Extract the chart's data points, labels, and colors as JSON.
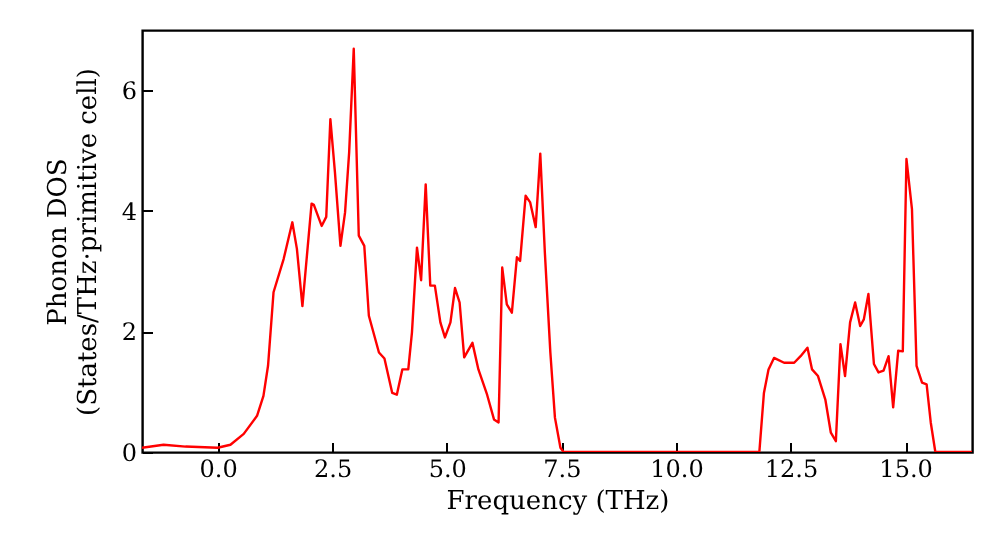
{
  "chart_data": {
    "type": "line",
    "xlabel": "Frequency (THz)",
    "ylabel": "Phonon DOS\n(States/THz·primitive cell)",
    "xlim": [
      -1.65,
      16.46
    ],
    "ylim": [
      0,
      7
    ],
    "xticks": [
      {
        "value": 0,
        "label": "0.0"
      },
      {
        "value": 2.5,
        "label": "2.5"
      },
      {
        "value": 5,
        "label": "5.0"
      },
      {
        "value": 7.5,
        "label": "7.5"
      },
      {
        "value": 10,
        "label": "10.0"
      },
      {
        "value": 12.5,
        "label": "12.5"
      },
      {
        "value": 15,
        "label": "15.0"
      }
    ],
    "yticks": [
      0,
      2,
      4,
      6
    ],
    "grid": false,
    "marker": "none",
    "line_style": "solid",
    "series": [
      {
        "color": "#ff0000",
        "x": [
          -1.65,
          -1.18,
          -0.7,
          0,
          0.28,
          0.57,
          0.86,
          1.0,
          1.1,
          1.22,
          1.44,
          1.63,
          1.73,
          1.85,
          2.05,
          2.1,
          2.27,
          2.37,
          2.46,
          2.56,
          2.68,
          2.78,
          2.87,
          2.97,
          3.08,
          3.2,
          3.3,
          3.52,
          3.64,
          3.81,
          3.91,
          4.03,
          4.16,
          4.24,
          4.35,
          4.44,
          4.54,
          4.64,
          4.74,
          4.86,
          4.96,
          5.08,
          5.18,
          5.28,
          5.38,
          5.56,
          5.69,
          5.88,
          6.03,
          6.13,
          6.21,
          6.31,
          6.42,
          6.53,
          6.6,
          6.72,
          6.82,
          6.94,
          7.04,
          7.14,
          7.26,
          7.36,
          7.48,
          7.55,
          11.82,
          11.92,
          12.02,
          12.14,
          12.36,
          12.58,
          12.72,
          12.87,
          12.97,
          13.1,
          13.26,
          13.38,
          13.49,
          13.59,
          13.69,
          13.8,
          13.91,
          14.02,
          14.1,
          14.2,
          14.32,
          14.42,
          14.53,
          14.64,
          14.74,
          14.85,
          14.95,
          15.03,
          15.15,
          15.25,
          15.37,
          15.47,
          15.56,
          15.66,
          16.46
        ],
        "values": [
          0.07,
          0.12,
          0.09,
          0.07,
          0.12,
          0.3,
          0.6,
          0.93,
          1.43,
          2.65,
          3.2,
          3.81,
          3.37,
          2.42,
          4.12,
          4.1,
          3.75,
          3.9,
          5.52,
          4.64,
          3.42,
          3.97,
          4.97,
          6.69,
          3.59,
          3.42,
          2.26,
          1.65,
          1.55,
          0.98,
          0.95,
          1.37,
          1.37,
          1.98,
          3.39,
          2.85,
          4.44,
          2.76,
          2.76,
          2.15,
          1.9,
          2.15,
          2.72,
          2.48,
          1.57,
          1.81,
          1.37,
          0.95,
          0.54,
          0.49,
          3.06,
          2.45,
          2.31,
          3.23,
          3.17,
          4.25,
          4.14,
          3.73,
          4.95,
          3.31,
          1.65,
          0.57,
          0.07,
          0,
          0,
          0.98,
          1.37,
          1.56,
          1.48,
          1.48,
          1.59,
          1.73,
          1.37,
          1.26,
          0.87,
          0.32,
          0.18,
          1.79,
          1.26,
          2.15,
          2.48,
          2.09,
          2.2,
          2.62,
          1.46,
          1.32,
          1.35,
          1.59,
          0.74,
          1.68,
          1.67,
          4.86,
          4.03,
          1.43,
          1.15,
          1.12,
          0.49,
          0,
          0
        ]
      }
    ]
  }
}
